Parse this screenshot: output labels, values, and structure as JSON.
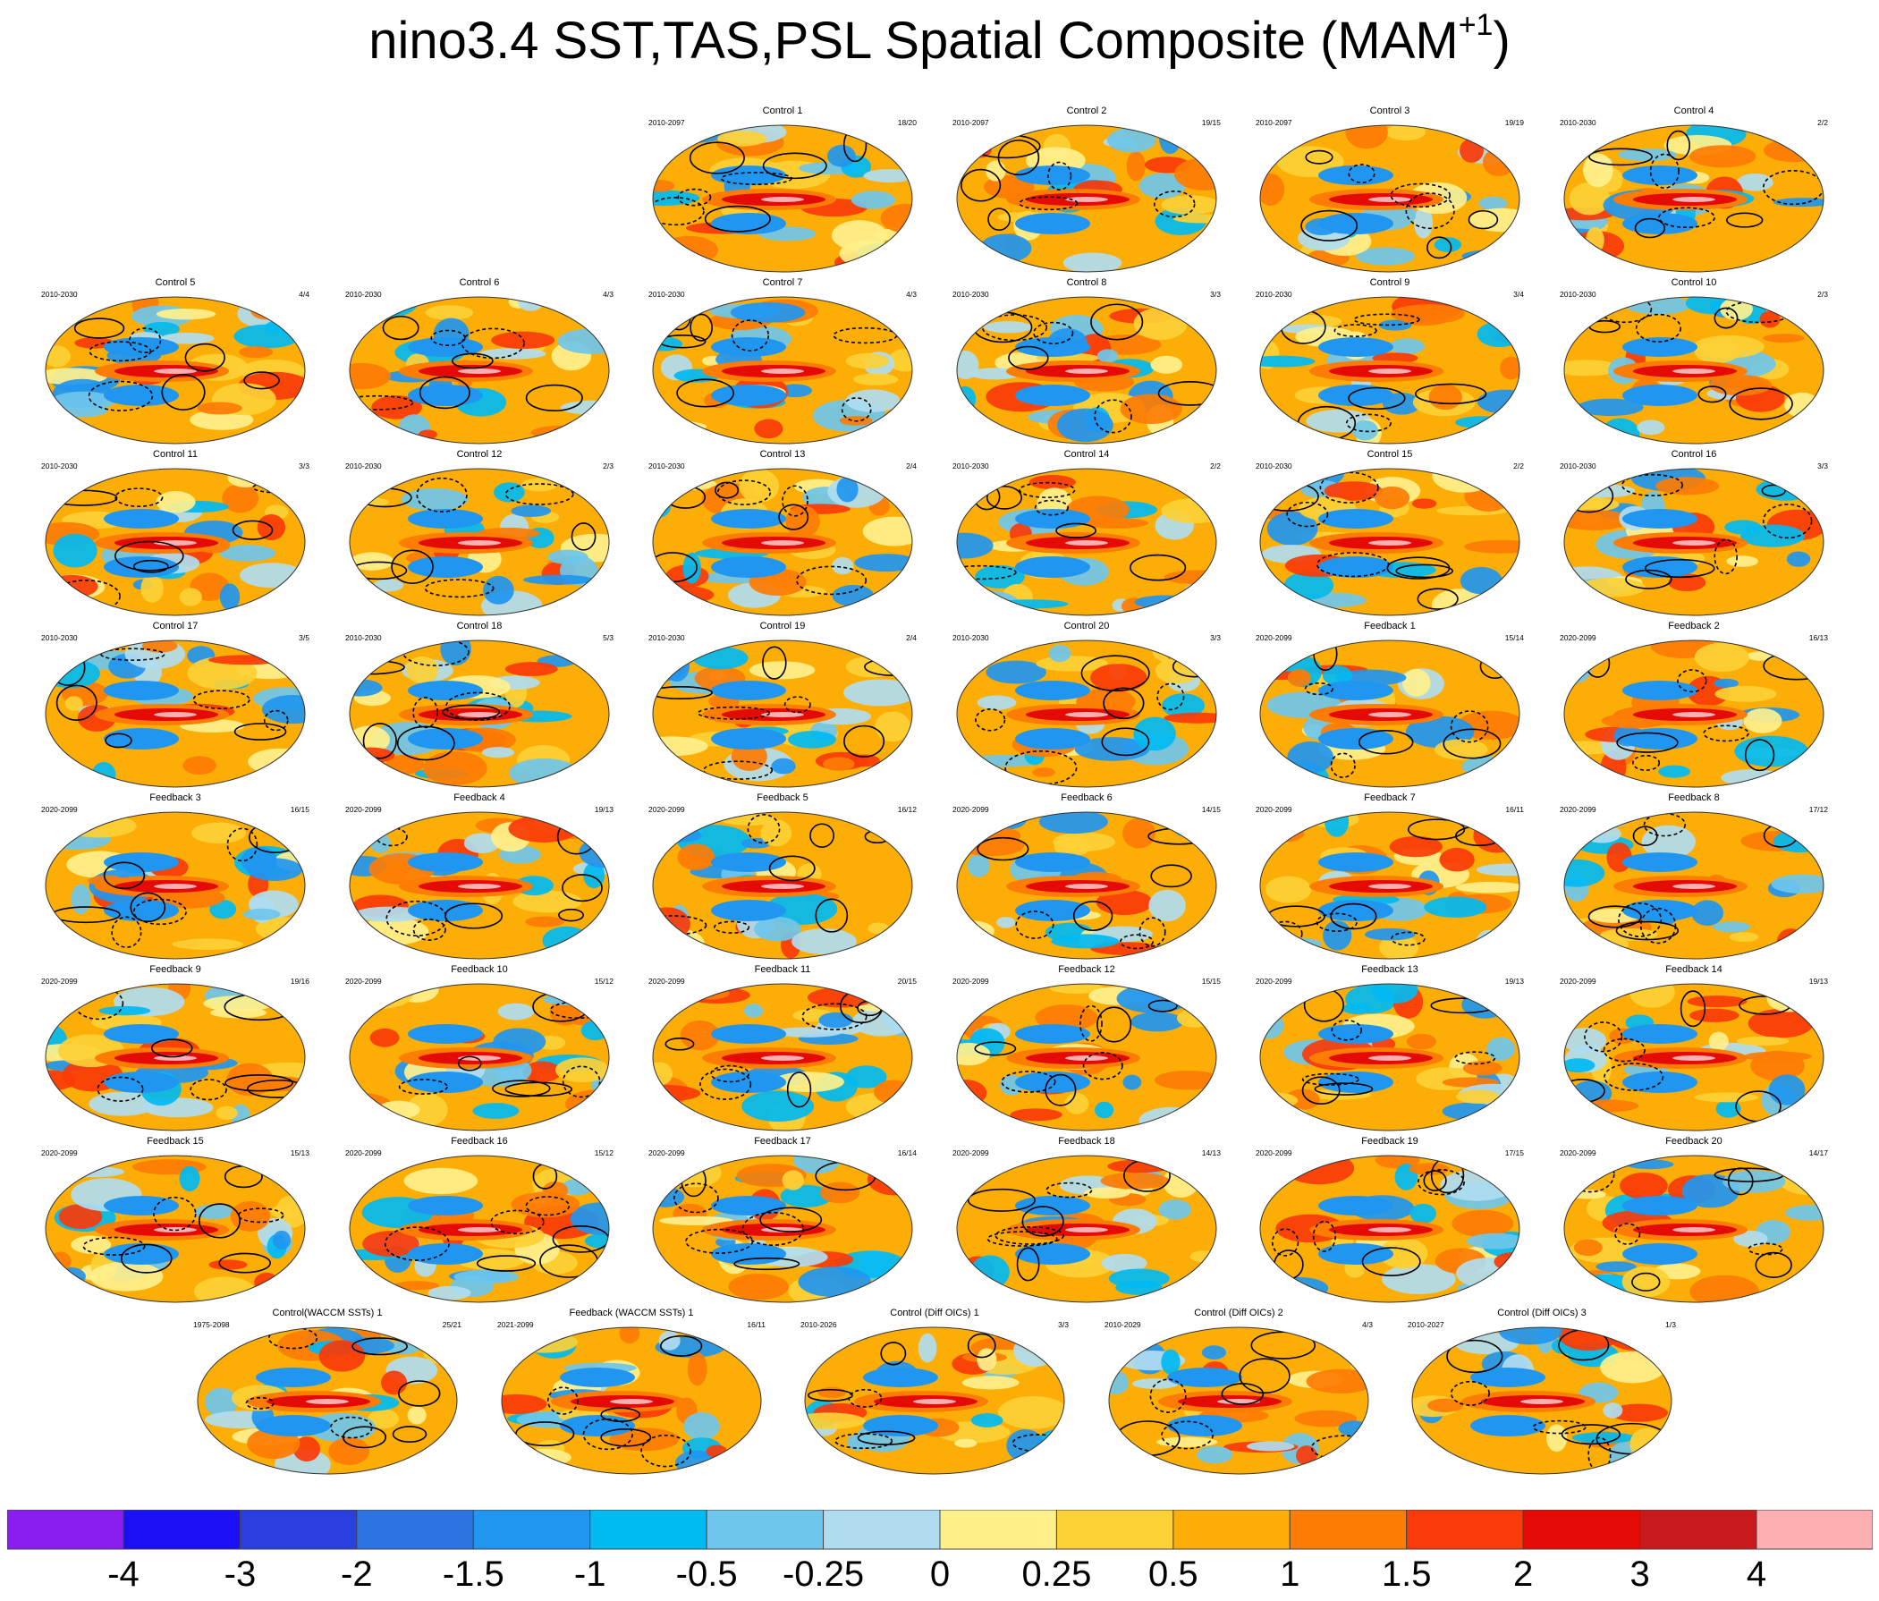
{
  "title": "nino3.4 SST,TAS,PSL Spatial Composite (MAM",
  "title_sup": "+1",
  "title_close": ")",
  "colors": {
    "levels": [
      "#8a1df0",
      "#1a0ff5",
      "#2a3fe0",
      "#2e73e4",
      "#2196f0",
      "#00baf2",
      "#6ec6ec",
      "#b0dcf0",
      "#fff08c",
      "#fdd036",
      "#fdae06",
      "#fd7c04",
      "#fa3a08",
      "#e40a06",
      "#c81a1c",
      "#fdb0b2"
    ]
  },
  "colorbar_labels": [
    "-4",
    "-3",
    "-2",
    "-1.5",
    "-1",
    "-0.5",
    "-0.25",
    "0",
    "0.25",
    "0.5",
    "1",
    "1.5",
    "2",
    "3",
    "4"
  ],
  "chart_data": {
    "type": "heatmap",
    "title": "nino3.4 SST,TAS,PSL Spatial Composite (MAM+1)",
    "variables": [
      "SST",
      "TAS",
      "PSL"
    ],
    "season": "MAM+1",
    "colorbar_levels": [
      -4,
      -3,
      -2,
      -1.5,
      -1,
      -0.5,
      -0.25,
      0,
      0.25,
      0.5,
      1,
      1.5,
      2,
      3,
      4
    ],
    "panels": [
      {
        "name": "Control 1",
        "years": "2010-2097",
        "counts": "18/20"
      },
      {
        "name": "Control 2",
        "years": "2010-2097",
        "counts": "19/15"
      },
      {
        "name": "Control 3",
        "years": "2010-2097",
        "counts": "19/19"
      },
      {
        "name": "Control 4",
        "years": "2010-2030",
        "counts": "2/2"
      },
      {
        "name": "Control 5",
        "years": "2010-2030",
        "counts": "4/4"
      },
      {
        "name": "Control 6",
        "years": "2010-2030",
        "counts": "4/3"
      },
      {
        "name": "Control 7",
        "years": "2010-2030",
        "counts": "4/3"
      },
      {
        "name": "Control 8",
        "years": "2010-2030",
        "counts": "3/3"
      },
      {
        "name": "Control 9",
        "years": "2010-2030",
        "counts": "3/4"
      },
      {
        "name": "Control 10",
        "years": "2010-2030",
        "counts": "2/3"
      },
      {
        "name": "Control 11",
        "years": "2010-2030",
        "counts": "3/3"
      },
      {
        "name": "Control 12",
        "years": "2010-2030",
        "counts": "2/3"
      },
      {
        "name": "Control 13",
        "years": "2010-2030",
        "counts": "2/4"
      },
      {
        "name": "Control 14",
        "years": "2010-2030",
        "counts": "2/2"
      },
      {
        "name": "Control 15",
        "years": "2010-2030",
        "counts": "2/2"
      },
      {
        "name": "Control 16",
        "years": "2010-2030",
        "counts": "3/3"
      },
      {
        "name": "Control 17",
        "years": "2010-2030",
        "counts": "3/5"
      },
      {
        "name": "Control 18",
        "years": "2010-2030",
        "counts": "5/3"
      },
      {
        "name": "Control 19",
        "years": "2010-2030",
        "counts": "2/4"
      },
      {
        "name": "Control 20",
        "years": "2010-2030",
        "counts": "3/3"
      },
      {
        "name": "Feedback 1",
        "years": "2020-2099",
        "counts": "15/14"
      },
      {
        "name": "Feedback 2",
        "years": "2020-2099",
        "counts": "16/13"
      },
      {
        "name": "Feedback 3",
        "years": "2020-2099",
        "counts": "16/15"
      },
      {
        "name": "Feedback 4",
        "years": "2020-2099",
        "counts": "19/13"
      },
      {
        "name": "Feedback 5",
        "years": "2020-2099",
        "counts": "16/12"
      },
      {
        "name": "Feedback 6",
        "years": "2020-2099",
        "counts": "14/15"
      },
      {
        "name": "Feedback 7",
        "years": "2020-2099",
        "counts": "16/11"
      },
      {
        "name": "Feedback 8",
        "years": "2020-2099",
        "counts": "17/12"
      },
      {
        "name": "Feedback 9",
        "years": "2020-2099",
        "counts": "19/16"
      },
      {
        "name": "Feedback 10",
        "years": "2020-2099",
        "counts": "15/12"
      },
      {
        "name": "Feedback 11",
        "years": "2020-2099",
        "counts": "20/15"
      },
      {
        "name": "Feedback 12",
        "years": "2020-2099",
        "counts": "15/15"
      },
      {
        "name": "Feedback 13",
        "years": "2020-2099",
        "counts": "19/13"
      },
      {
        "name": "Feedback 14",
        "years": "2020-2099",
        "counts": "19/13"
      },
      {
        "name": "Feedback 15",
        "years": "2020-2099",
        "counts": "15/13"
      },
      {
        "name": "Feedback 16",
        "years": "2020-2099",
        "counts": "15/12"
      },
      {
        "name": "Feedback 17",
        "years": "2020-2099",
        "counts": "16/14"
      },
      {
        "name": "Feedback 18",
        "years": "2020-2099",
        "counts": "14/13"
      },
      {
        "name": "Feedback 19",
        "years": "2020-2099",
        "counts": "17/15"
      },
      {
        "name": "Feedback 20",
        "years": "2020-2099",
        "counts": "14/17"
      },
      {
        "name": "Control(WACCM SSTs) 1",
        "years": "1975-2098",
        "counts": "25/21"
      },
      {
        "name": "Feedback (WACCM SSTs) 1",
        "years": "2021-2099",
        "counts": "16/11"
      },
      {
        "name": "Control (Diff OICs) 1",
        "years": "2010-2026",
        "counts": "3/3"
      },
      {
        "name": "Control (Diff OICs) 2",
        "years": "2010-2029",
        "counts": "4/3"
      },
      {
        "name": "Control (Diff OICs) 3",
        "years": "2010-2027",
        "counts": "1/3"
      }
    ]
  }
}
